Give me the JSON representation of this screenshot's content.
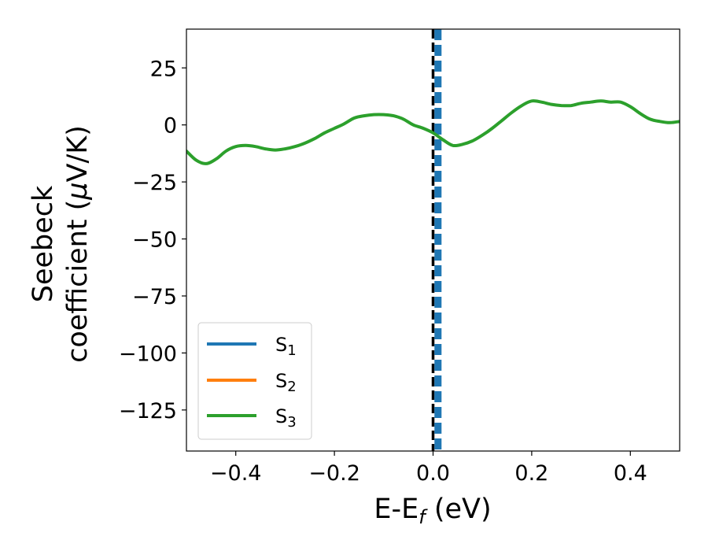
{
  "chart_data": {
    "type": "line",
    "xlabel": "E-E",
    "xlabel_sub": "f",
    "xlabel_unit": " (eV)",
    "ylabel_line1": "Seebeck",
    "ylabel_line2": "coefficient  (",
    "ylabel_mu": "μ",
    "ylabel_unit": "V/K)",
    "xlim": [
      -0.5,
      0.5
    ],
    "ylim": [
      -143,
      42
    ],
    "xticks": [
      -0.4,
      -0.2,
      0.0,
      0.2,
      0.4
    ],
    "xtick_labels": [
      "−0.4",
      "−0.2",
      "0.0",
      "0.2",
      "0.4"
    ],
    "yticks": [
      25,
      0,
      -25,
      -50,
      -75,
      -100,
      -125
    ],
    "ytick_labels": [
      "25",
      "0",
      "−25",
      "−50",
      "−75",
      "−100",
      "−125"
    ],
    "grid": false,
    "legend_position": "lower-left",
    "vertical_lines": [
      {
        "x": 0.0,
        "color": "#000000",
        "style": "dashed"
      },
      {
        "x": 0.01,
        "color": "#1f77b4",
        "style": "dashed"
      }
    ],
    "series": [
      {
        "name_base": "S",
        "name_sub": "1",
        "color": "#1f77b4",
        "x": [],
        "y": []
      },
      {
        "name_base": "S",
        "name_sub": "2",
        "color": "#ff7f0e",
        "x": [],
        "y": []
      },
      {
        "name_base": "S",
        "name_sub": "3",
        "color": "#2ca02c",
        "x": [
          -0.5,
          -0.48,
          -0.46,
          -0.44,
          -0.42,
          -0.4,
          -0.38,
          -0.36,
          -0.34,
          -0.32,
          -0.3,
          -0.28,
          -0.26,
          -0.24,
          -0.22,
          -0.2,
          -0.18,
          -0.16,
          -0.14,
          -0.12,
          -0.1,
          -0.08,
          -0.06,
          -0.04,
          -0.02,
          0.0,
          0.02,
          0.04,
          0.06,
          0.08,
          0.1,
          0.12,
          0.14,
          0.16,
          0.18,
          0.2,
          0.22,
          0.24,
          0.26,
          0.28,
          0.3,
          0.32,
          0.34,
          0.36,
          0.38,
          0.4,
          0.42,
          0.44,
          0.46,
          0.48,
          0.5
        ],
        "y": [
          -11.5,
          -15.5,
          -17,
          -15,
          -11.5,
          -9.5,
          -9,
          -9.5,
          -10.5,
          -11,
          -10.5,
          -9.5,
          -8,
          -6,
          -3.5,
          -1.5,
          0.5,
          3,
          4,
          4.5,
          4.5,
          4,
          2.5,
          0,
          -1.5,
          -3.5,
          -6.5,
          -9,
          -8.5,
          -7,
          -4.5,
          -1.5,
          2,
          5.5,
          8.5,
          10.5,
          10,
          9,
          8.5,
          8.5,
          9.5,
          10,
          10.5,
          10,
          10,
          8,
          5,
          2.5,
          1.5,
          1,
          1.5
        ]
      }
    ]
  }
}
